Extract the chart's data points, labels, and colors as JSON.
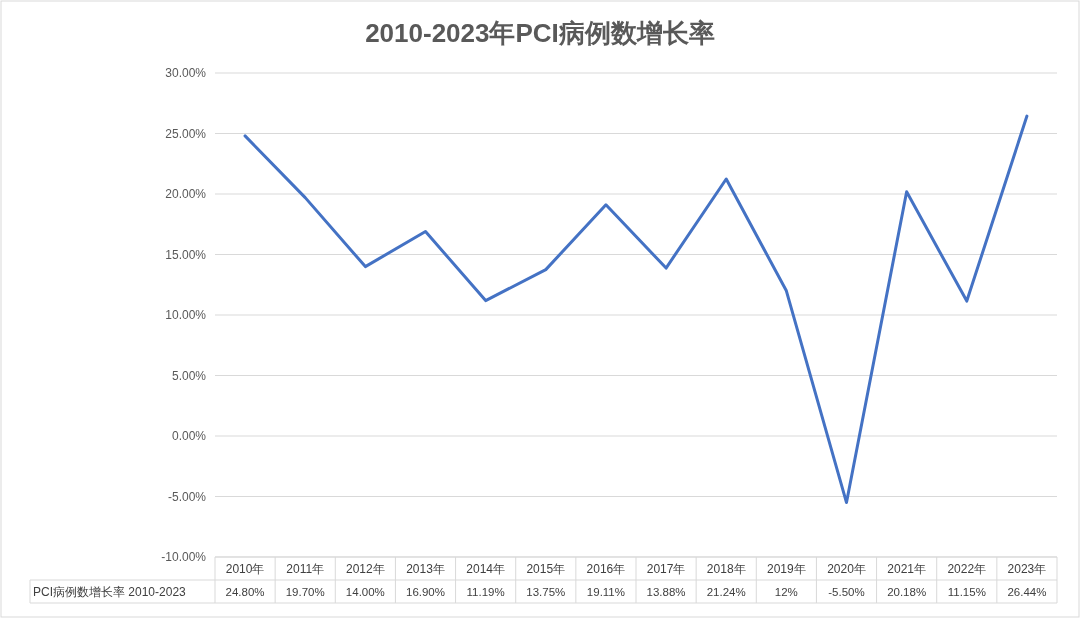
{
  "chart_data": {
    "type": "line",
    "title": "2010-2023年PCI病例数增长率",
    "categories": [
      "2010年",
      "2011年",
      "2012年",
      "2013年",
      "2014年",
      "2015年",
      "2016年",
      "2017年",
      "2018年",
      "2019年",
      "2020年",
      "2021年",
      "2022年",
      "2023年"
    ],
    "series": [
      {
        "name": "PCI病例数增长率 2010-2023",
        "color": "#4472c4",
        "values": [
          24.8,
          19.7,
          14.0,
          16.9,
          11.19,
          13.75,
          19.11,
          13.88,
          21.24,
          12,
          -5.5,
          20.18,
          11.15,
          26.44
        ],
        "value_labels": [
          "24.80%",
          "19.70%",
          "14.00%",
          "16.90%",
          "11.19%",
          "13.75%",
          "19.11%",
          "13.88%",
          "21.24%",
          "12%",
          "-5.50%",
          "20.18%",
          "11.15%",
          "26.44%"
        ]
      }
    ],
    "ylim": [
      -10,
      30
    ],
    "yticks": [
      {
        "value": -10,
        "label": "-10.00%"
      },
      {
        "value": -5,
        "label": "-5.00%"
      },
      {
        "value": 0,
        "label": "0.00%"
      },
      {
        "value": 5,
        "label": "5.00%"
      },
      {
        "value": 10,
        "label": "10.00%"
      },
      {
        "value": 15,
        "label": "15.00%"
      },
      {
        "value": 20,
        "label": "20.00%"
      },
      {
        "value": 25,
        "label": "25.00%"
      },
      {
        "value": 30,
        "label": "30.00%"
      }
    ],
    "grid": "y",
    "marker": "none",
    "line_style": "solid"
  }
}
